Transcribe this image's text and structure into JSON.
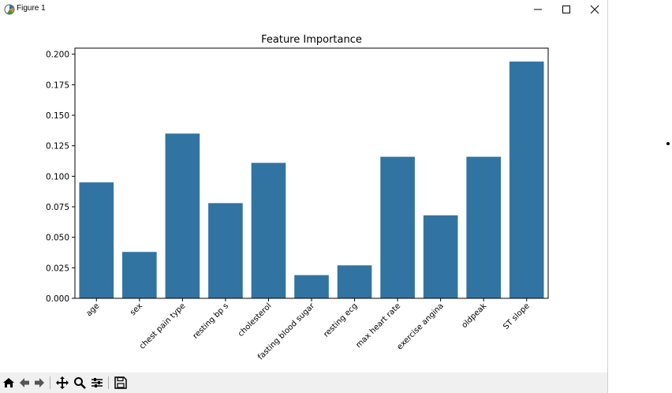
{
  "window": {
    "title": "Figure 1",
    "controls": {
      "minimize": "minimize",
      "maximize": "maximize",
      "close": "close"
    }
  },
  "colors": {
    "bar": "#3274a1",
    "axes": "#000000",
    "toolbar_bg": "#f0f0f0"
  },
  "toolbar": {
    "buttons": [
      "home-icon",
      "back-arrow-icon",
      "forward-arrow-icon",
      "pan-icon",
      "zoom-icon",
      "configure-subplots-icon",
      "save-icon"
    ]
  },
  "chart_data": {
    "type": "bar",
    "title": "Feature Importance",
    "xlabel": "",
    "ylabel": "",
    "categories": [
      "age",
      "sex",
      "chest pain type",
      "resting bp s",
      "cholesterol",
      "fasting blood sugar",
      "resting ecg",
      "max heart rate",
      "exercise angina",
      "oldpeak",
      "ST slope"
    ],
    "values": [
      0.095,
      0.038,
      0.135,
      0.078,
      0.111,
      0.019,
      0.027,
      0.116,
      0.068,
      0.116,
      0.194
    ],
    "ylim": [
      0,
      0.205
    ],
    "yticks": [
      "0.000",
      "0.025",
      "0.050",
      "0.075",
      "0.100",
      "0.125",
      "0.150",
      "0.175",
      "0.200"
    ],
    "ytick_values": [
      0,
      0.025,
      0.05,
      0.075,
      0.1,
      0.125,
      0.15,
      0.175,
      0.2
    ],
    "grid": false,
    "legend": "none"
  }
}
